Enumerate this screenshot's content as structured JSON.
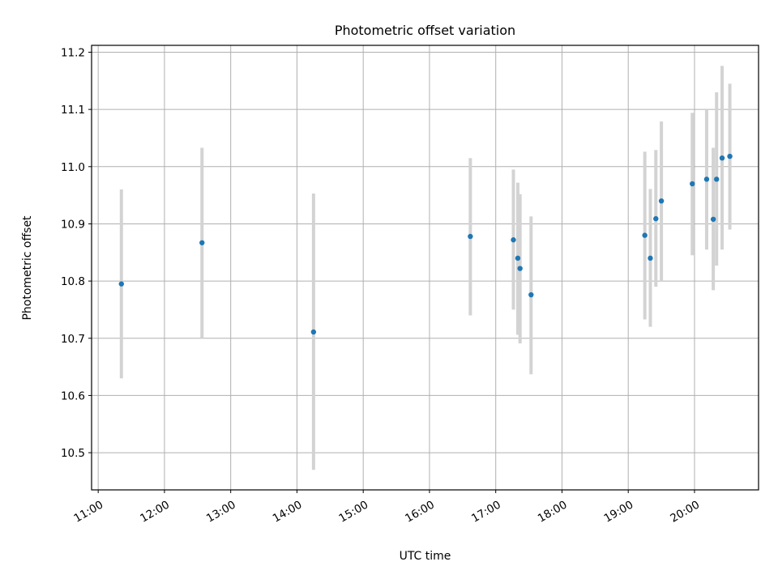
{
  "chart_data": {
    "type": "scatter",
    "title": "Photometric offset variation",
    "xlabel": "UTC time",
    "ylabel": "Photometric offset",
    "xlim": [
      "10:54",
      "20:58"
    ],
    "ylim": [
      10.435,
      11.212
    ],
    "grid": true,
    "x_ticks": [
      "11:00",
      "12:00",
      "13:00",
      "14:00",
      "15:00",
      "16:00",
      "17:00",
      "18:00",
      "19:00",
      "20:00"
    ],
    "y_ticks": [
      "10.5",
      "10.6",
      "10.7",
      "10.8",
      "10.9",
      "11.0",
      "11.1",
      "11.2"
    ],
    "colors": {
      "marker": "#1f77b4",
      "error_bar": "#d3d3d3",
      "grid": "#b0b0b0"
    },
    "series": [
      {
        "points": [
          {
            "x": "11:21",
            "y": 10.795,
            "low": 10.63,
            "high": 10.96
          },
          {
            "x": "12:34",
            "y": 10.867,
            "low": 10.7,
            "high": 11.033
          },
          {
            "x": "14:15",
            "y": 10.711,
            "low": 10.47,
            "high": 10.953
          },
          {
            "x": "16:37",
            "y": 10.878,
            "low": 10.74,
            "high": 11.015
          },
          {
            "x": "17:16",
            "y": 10.872,
            "low": 10.75,
            "high": 10.995
          },
          {
            "x": "17:20",
            "y": 10.84,
            "low": 10.706,
            "high": 10.972
          },
          {
            "x": "17:22",
            "y": 10.822,
            "low": 10.691,
            "high": 10.952
          },
          {
            "x": "17:32",
            "y": 10.776,
            "low": 10.637,
            "high": 10.913
          },
          {
            "x": "19:15",
            "y": 10.88,
            "low": 10.733,
            "high": 11.026
          },
          {
            "x": "19:20",
            "y": 10.84,
            "low": 10.72,
            "high": 10.961
          },
          {
            "x": "19:25",
            "y": 10.909,
            "low": 10.79,
            "high": 11.029
          },
          {
            "x": "19:30",
            "y": 10.94,
            "low": 10.8,
            "high": 11.079
          },
          {
            "x": "19:58",
            "y": 10.97,
            "low": 10.845,
            "high": 11.094
          },
          {
            "x": "20:11",
            "y": 10.978,
            "low": 10.855,
            "high": 11.1
          },
          {
            "x": "20:17",
            "y": 10.908,
            "low": 10.784,
            "high": 11.033
          },
          {
            "x": "20:20",
            "y": 10.978,
            "low": 10.827,
            "high": 11.13
          },
          {
            "x": "20:25",
            "y": 11.015,
            "low": 10.855,
            "high": 11.176
          },
          {
            "x": "20:32",
            "y": 11.018,
            "low": 10.89,
            "high": 11.145
          }
        ]
      }
    ]
  }
}
